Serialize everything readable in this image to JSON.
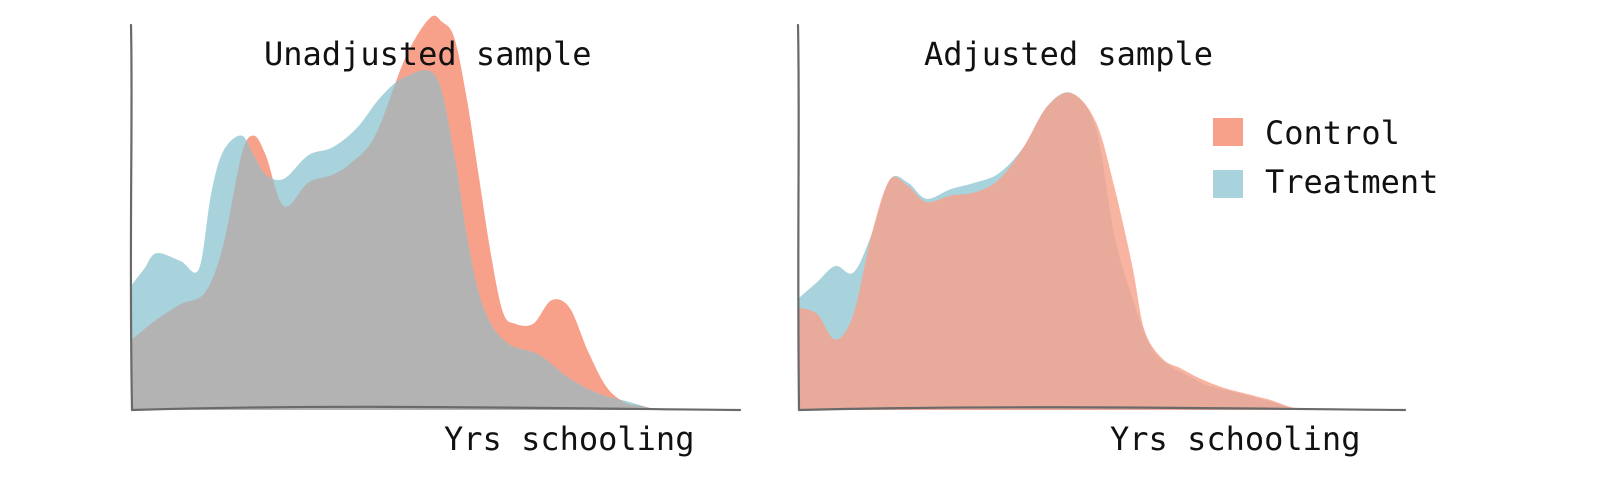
{
  "chart_data": [
    {
      "type": "area",
      "title": "Unadjusted sample",
      "xlabel": "Yrs schooling",
      "ylabel": "",
      "grid": false,
      "overlap_color": "#b3b3b3",
      "series": [
        {
          "name": "Control",
          "color": "#f7a08a",
          "x": [
            0,
            0.04,
            0.08,
            0.12,
            0.15,
            0.18,
            0.2,
            0.22,
            0.25,
            0.29,
            0.33,
            0.36,
            0.4,
            0.45,
            0.49,
            0.51,
            0.53,
            0.55,
            0.57,
            0.59,
            0.61,
            0.63,
            0.66,
            0.69,
            0.72,
            0.75,
            0.78,
            0.81,
            0.84,
            0.87,
            0.9
          ],
          "values": [
            0.18,
            0.23,
            0.27,
            0.3,
            0.42,
            0.65,
            0.7,
            0.65,
            0.52,
            0.58,
            0.6,
            0.63,
            0.7,
            0.9,
            1.0,
            0.99,
            0.95,
            0.8,
            0.6,
            0.4,
            0.25,
            0.22,
            0.22,
            0.28,
            0.26,
            0.15,
            0.06,
            0.02,
            0.01,
            0.0,
            0.0
          ]
        },
        {
          "name": "Treatment",
          "color": "#a8d3dc",
          "x": [
            0,
            0.02,
            0.04,
            0.08,
            0.11,
            0.13,
            0.15,
            0.18,
            0.2,
            0.22,
            0.25,
            0.29,
            0.33,
            0.37,
            0.41,
            0.45,
            0.5,
            0.53,
            0.55,
            0.57,
            0.59,
            0.61,
            0.63,
            0.67,
            0.72,
            0.77,
            0.82,
            0.86
          ],
          "values": [
            0.32,
            0.36,
            0.4,
            0.38,
            0.36,
            0.55,
            0.66,
            0.7,
            0.65,
            0.6,
            0.59,
            0.65,
            0.67,
            0.72,
            0.8,
            0.85,
            0.85,
            0.65,
            0.45,
            0.3,
            0.22,
            0.18,
            0.16,
            0.14,
            0.08,
            0.04,
            0.02,
            0.0
          ]
        }
      ]
    },
    {
      "type": "area",
      "title": "Adjusted sample",
      "xlabel": "Yrs schooling",
      "ylabel": "",
      "grid": false,
      "legend": "top-right",
      "series": [
        {
          "name": "Control",
          "color": "#f7a08a",
          "x": [
            0,
            0.03,
            0.06,
            0.09,
            0.12,
            0.15,
            0.18,
            0.21,
            0.25,
            0.29,
            0.33,
            0.37,
            0.41,
            0.45,
            0.49,
            0.52,
            0.55,
            0.57,
            0.6,
            0.63,
            0.66,
            0.7,
            0.74,
            0.78,
            0.81,
            0.84
          ],
          "values": [
            0.32,
            0.3,
            0.22,
            0.3,
            0.55,
            0.72,
            0.7,
            0.65,
            0.67,
            0.68,
            0.72,
            0.82,
            0.95,
            0.99,
            0.9,
            0.7,
            0.45,
            0.25,
            0.16,
            0.13,
            0.1,
            0.07,
            0.05,
            0.03,
            0.01,
            0.0
          ]
        },
        {
          "name": "Treatment",
          "color": "#a8d3dc",
          "x": [
            0,
            0.03,
            0.06,
            0.09,
            0.12,
            0.15,
            0.18,
            0.21,
            0.25,
            0.29,
            0.33,
            0.37,
            0.41,
            0.45,
            0.49,
            0.52,
            0.55,
            0.58,
            0.61,
            0.64,
            0.67,
            0.71,
            0.75,
            0.79,
            0.82
          ],
          "values": [
            0.35,
            0.4,
            0.45,
            0.43,
            0.55,
            0.72,
            0.71,
            0.66,
            0.69,
            0.71,
            0.74,
            0.82,
            0.95,
            0.99,
            0.88,
            0.55,
            0.35,
            0.2,
            0.14,
            0.11,
            0.08,
            0.06,
            0.04,
            0.02,
            0.0
          ]
        }
      ]
    }
  ]
}
